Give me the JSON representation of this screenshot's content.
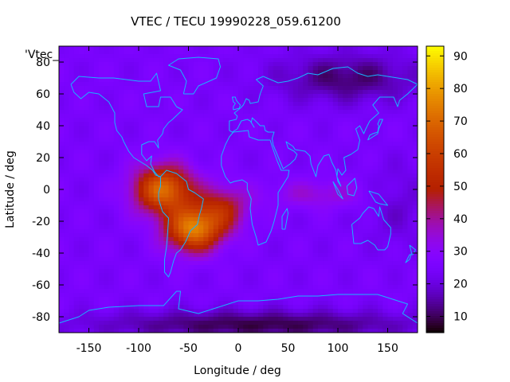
{
  "chart_data": {
    "type": "heatmap",
    "title": "VTEC / TECU 19990228_059.61200",
    "xlabel": "Longitude / deg",
    "ylabel": "Latitude / deg",
    "xlim": [
      -180,
      180
    ],
    "ylim": [
      -90,
      90
    ],
    "xticks": [
      -150,
      -100,
      -50,
      0,
      50,
      100,
      150
    ],
    "yticks": [
      -80,
      -60,
      -40,
      -20,
      0,
      20,
      40,
      60,
      80
    ],
    "colorbar": {
      "range": [
        5,
        93
      ],
      "ticks": [
        10,
        20,
        30,
        40,
        50,
        60,
        70,
        80,
        90
      ]
    },
    "key_label": "'Vtec_",
    "overlay": "coastlines",
    "features": [
      {
        "name": "background",
        "value": 25
      },
      {
        "name": "equatorial-anomaly-south-america-north",
        "center": [
          -75,
          0
        ],
        "spread": [
          30,
          15
        ],
        "peak": 45
      },
      {
        "name": "equatorial-anomaly-south-america-south",
        "center": [
          -45,
          -25
        ],
        "spread": [
          28,
          14
        ],
        "peak": 48
      },
      {
        "name": "equatorial-anomaly-atlantic",
        "center": [
          -15,
          -12
        ],
        "spread": [
          25,
          14
        ],
        "peak": 22
      },
      {
        "name": "band-indian-ocean",
        "center": [
          80,
          -3
        ],
        "spread": [
          50,
          9
        ],
        "peak": 10
      },
      {
        "name": "polar-low-north",
        "center": [
          110,
          70
        ],
        "spread": [
          70,
          15
        ],
        "peak": -14
      },
      {
        "name": "polar-low-south",
        "center": [
          20,
          -85
        ],
        "spread": [
          160,
          9
        ],
        "peak": -16
      },
      {
        "name": "pacific-low",
        "center": [
          160,
          -10
        ],
        "spread": [
          30,
          25
        ],
        "peak": -6
      }
    ]
  }
}
